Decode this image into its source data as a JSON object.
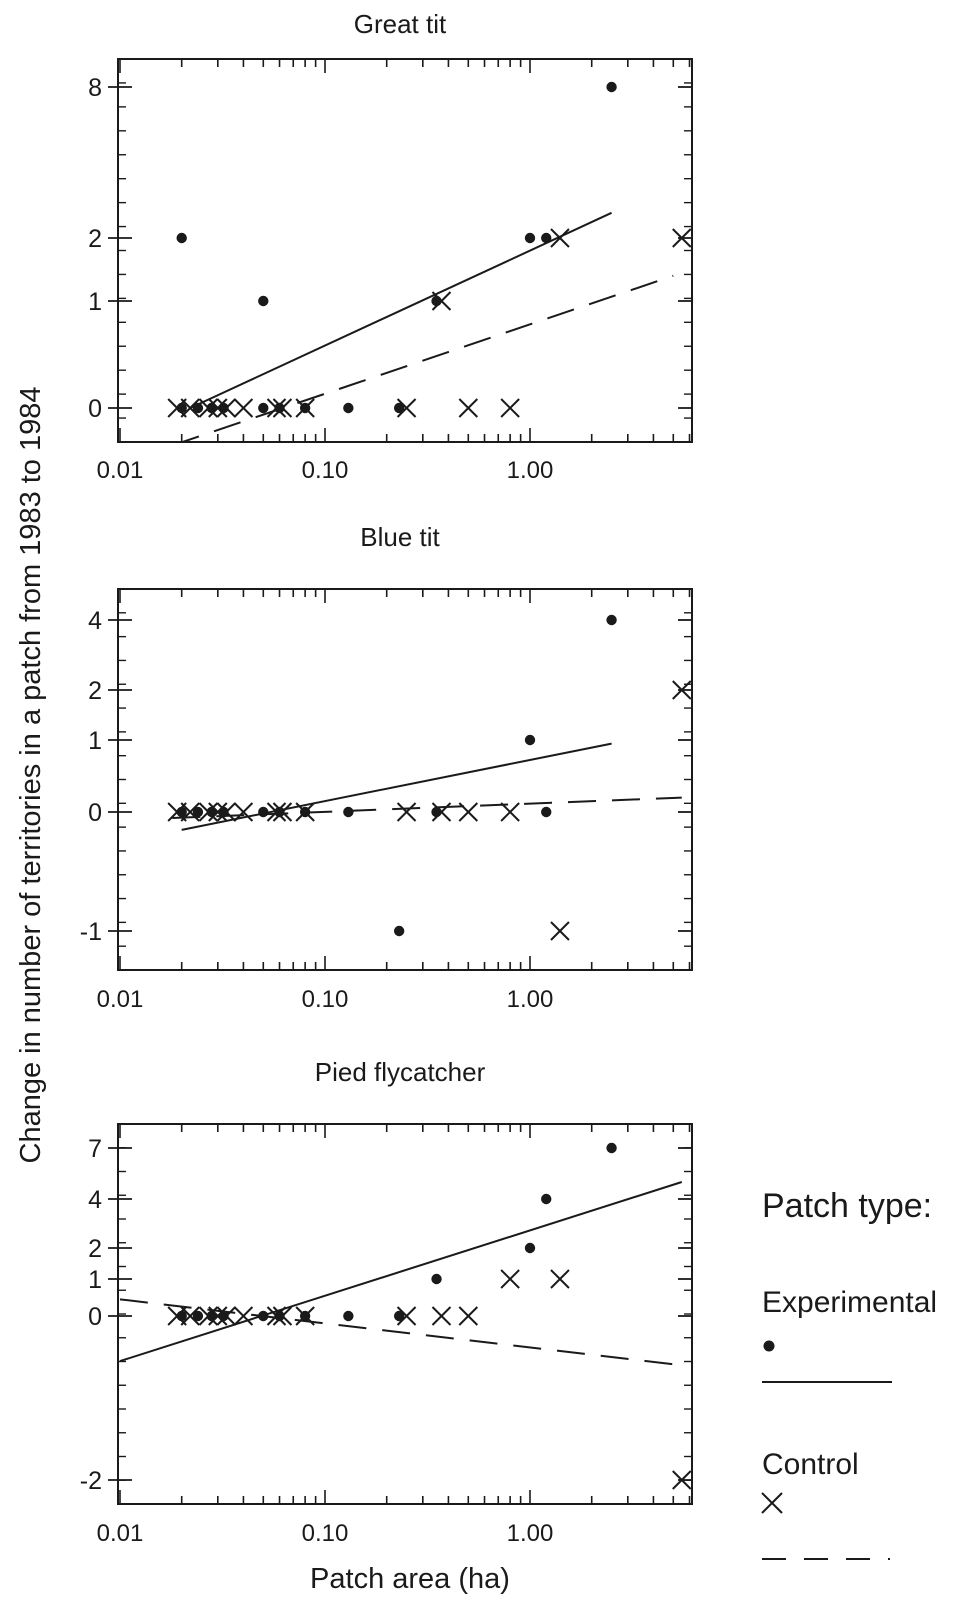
{
  "ylabel": "Change in number of territories in a patch  from 1983 to 1984",
  "xlabel": "Patch area (ha)",
  "legend": {
    "title": "Patch type:",
    "experimental_label": "Experimental",
    "control_label": "Control"
  },
  "colors": {
    "ink": "#1a1a1a",
    "background": "#ffffff"
  },
  "chart_data": [
    {
      "type": "scatter",
      "title": "Great tit",
      "x_scale": "log",
      "xlim": [
        0.01,
        5.5
      ],
      "x_ticks": [
        0.01,
        0.1,
        1.0
      ],
      "x_tick_labels": [
        "0.01",
        "0.10",
        "1.00"
      ],
      "y_ticks": [
        0,
        1,
        2,
        8
      ],
      "y_tick_labels": [
        "0",
        "1",
        "2",
        "8"
      ],
      "series": [
        {
          "name": "Experimental",
          "marker": "dot",
          "points": [
            [
              0.02,
              2
            ],
            [
              0.05,
              1
            ],
            [
              0.35,
              1
            ],
            [
              1.0,
              2
            ],
            [
              1.2,
              2
            ],
            [
              2.5,
              8
            ],
            [
              0.02,
              0
            ],
            [
              0.024,
              0
            ],
            [
              0.028,
              0
            ],
            [
              0.032,
              0
            ],
            [
              0.05,
              0
            ],
            [
              0.06,
              0
            ],
            [
              0.08,
              0
            ],
            [
              0.13,
              0
            ],
            [
              0.23,
              0
            ]
          ]
        },
        {
          "name": "Control",
          "marker": "cross",
          "points": [
            [
              0.019,
              0
            ],
            [
              0.022,
              0
            ],
            [
              0.027,
              0
            ],
            [
              0.03,
              0
            ],
            [
              0.033,
              0
            ],
            [
              0.04,
              0
            ],
            [
              0.058,
              0
            ],
            [
              0.062,
              0
            ],
            [
              0.08,
              0
            ],
            [
              0.25,
              0
            ],
            [
              0.5,
              0
            ],
            [
              0.8,
              0
            ],
            [
              0.37,
              1
            ],
            [
              1.4,
              2
            ],
            [
              5.5,
              2
            ]
          ]
        }
      ],
      "fit_lines": [
        {
          "name": "Experimental",
          "style": "solid",
          "x": [
            0.022,
            2.5
          ],
          "y": [
            0.0,
            3.0
          ]
        },
        {
          "name": "Control",
          "style": "dashed",
          "x": [
            0.018,
            5.0
          ],
          "y": [
            -0.35,
            1.4
          ]
        }
      ]
    },
    {
      "type": "scatter",
      "title": "Blue tit",
      "x_scale": "log",
      "xlim": [
        0.01,
        5.5
      ],
      "x_ticks": [
        0.01,
        0.1,
        1.0
      ],
      "x_tick_labels": [
        "0.01",
        "0.10",
        "1.00"
      ],
      "y_ticks": [
        -1,
        0,
        1,
        2,
        4
      ],
      "y_tick_labels": [
        "-1",
        "0",
        "1",
        "2",
        "4"
      ],
      "series": [
        {
          "name": "Experimental",
          "marker": "dot",
          "points": [
            [
              0.02,
              0
            ],
            [
              0.024,
              0
            ],
            [
              0.028,
              0
            ],
            [
              0.032,
              0
            ],
            [
              0.05,
              0
            ],
            [
              0.06,
              0
            ],
            [
              0.08,
              0
            ],
            [
              0.13,
              0
            ],
            [
              0.35,
              0
            ],
            [
              1.2,
              0
            ],
            [
              0.23,
              -1
            ],
            [
              1.0,
              1
            ],
            [
              2.5,
              4
            ]
          ]
        },
        {
          "name": "Control",
          "marker": "cross",
          "points": [
            [
              0.019,
              0
            ],
            [
              0.022,
              0
            ],
            [
              0.027,
              0
            ],
            [
              0.03,
              0
            ],
            [
              0.033,
              0
            ],
            [
              0.04,
              0
            ],
            [
              0.058,
              0
            ],
            [
              0.062,
              0
            ],
            [
              0.08,
              0
            ],
            [
              0.25,
              0
            ],
            [
              0.37,
              0
            ],
            [
              0.5,
              0
            ],
            [
              0.8,
              0
            ],
            [
              1.4,
              -1
            ],
            [
              5.5,
              2
            ]
          ]
        }
      ],
      "fit_lines": [
        {
          "name": "Experimental",
          "style": "solid",
          "x": [
            0.02,
            2.5
          ],
          "y": [
            -0.15,
            0.95
          ]
        },
        {
          "name": "Control",
          "style": "dashed",
          "x": [
            0.018,
            5.5
          ],
          "y": [
            -0.05,
            0.2
          ]
        }
      ]
    },
    {
      "type": "scatter",
      "title": "Pied flycatcher",
      "x_scale": "log",
      "xlim": [
        0.01,
        5.5
      ],
      "x_ticks": [
        0.01,
        0.1,
        1.0
      ],
      "x_tick_labels": [
        "0.01",
        "0.10",
        "1.00"
      ],
      "y_ticks": [
        -2,
        0,
        1,
        2,
        4,
        7
      ],
      "y_tick_labels": [
        "-2",
        "0",
        "1",
        "2",
        "4",
        "7"
      ],
      "series": [
        {
          "name": "Experimental",
          "marker": "dot",
          "points": [
            [
              0.02,
              0
            ],
            [
              0.024,
              0
            ],
            [
              0.028,
              0
            ],
            [
              0.032,
              0
            ],
            [
              0.05,
              0
            ],
            [
              0.06,
              0
            ],
            [
              0.08,
              0
            ],
            [
              0.13,
              0
            ],
            [
              0.23,
              0
            ],
            [
              0.35,
              1
            ],
            [
              1.0,
              2
            ],
            [
              1.2,
              4
            ],
            [
              2.5,
              7
            ]
          ]
        },
        {
          "name": "Control",
          "marker": "cross",
          "points": [
            [
              0.019,
              0
            ],
            [
              0.022,
              0
            ],
            [
              0.027,
              0
            ],
            [
              0.03,
              0
            ],
            [
              0.033,
              0
            ],
            [
              0.04,
              0
            ],
            [
              0.058,
              0
            ],
            [
              0.062,
              0
            ],
            [
              0.08,
              0
            ],
            [
              0.25,
              0
            ],
            [
              0.37,
              0
            ],
            [
              0.5,
              0
            ],
            [
              0.8,
              1
            ],
            [
              1.4,
              1
            ],
            [
              5.5,
              -2
            ]
          ]
        }
      ],
      "fit_lines": [
        {
          "name": "Experimental",
          "style": "solid",
          "x": [
            0.01,
            5.5
          ],
          "y": [
            -0.55,
            5.0
          ]
        },
        {
          "name": "Control",
          "style": "dashed",
          "x": [
            0.01,
            5.5
          ],
          "y": [
            0.45,
            -0.6
          ]
        }
      ]
    }
  ]
}
